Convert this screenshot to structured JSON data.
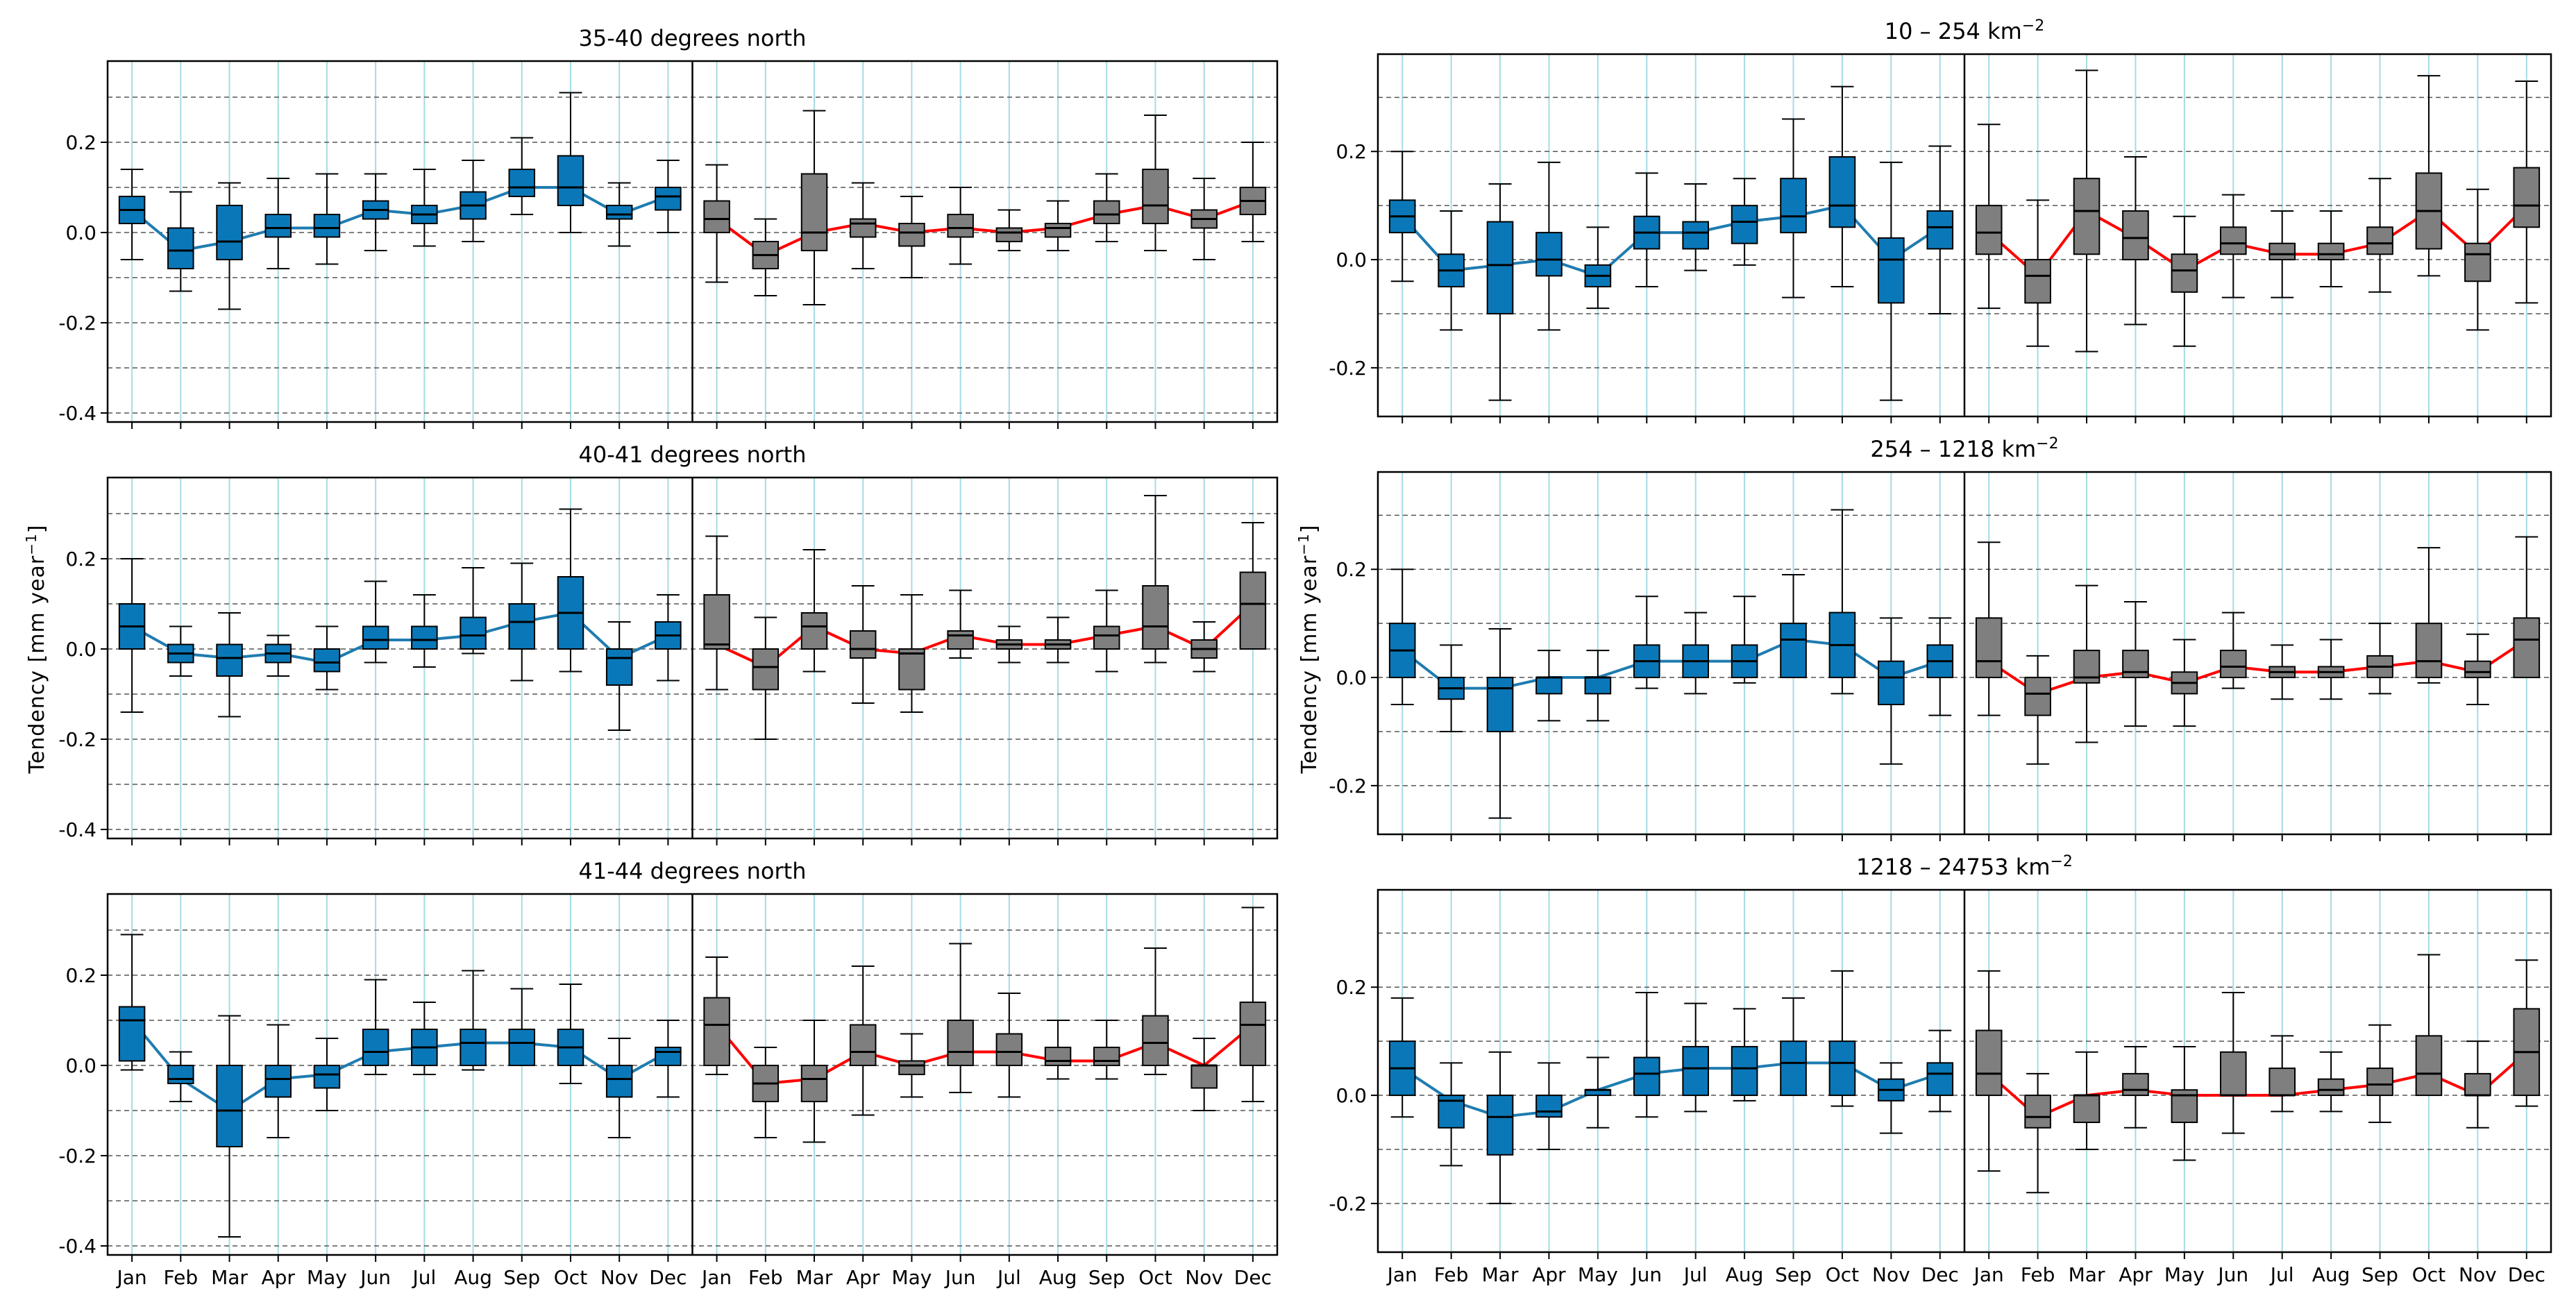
{
  "figure": {
    "ylabel_left": "Tendency [mm year",
    "ylabel_right": "Tendency [mm year",
    "ylabel_sup": "−1",
    "ylabel_close": "]",
    "months": [
      "Jan",
      "Feb",
      "Mar",
      "Apr",
      "May",
      "Jun",
      "Jul",
      "Aug",
      "Sep",
      "Oct",
      "Nov",
      "Dec"
    ],
    "colors": {
      "blue_box": "#0a78b8",
      "blue_line": "#1f7cb0",
      "gray_box": "#7f7f7f",
      "red_line": "#ff0000",
      "grid_v": "#a6dbe3",
      "grid_h": "#555555"
    }
  },
  "chart_data": [
    {
      "id": "p0",
      "type": "box",
      "title": "35-40 degrees north",
      "title_sup": "",
      "ylim": [
        -0.42,
        0.38
      ],
      "yticks": [
        -0.4,
        -0.2,
        0.0,
        0.2
      ],
      "left": {
        "median": [
          0.05,
          -0.04,
          -0.02,
          0.01,
          0.01,
          0.05,
          0.04,
          0.06,
          0.1,
          0.1,
          0.04,
          0.08
        ],
        "q1": [
          0.02,
          -0.08,
          -0.06,
          -0.01,
          -0.01,
          0.03,
          0.02,
          0.03,
          0.08,
          0.06,
          0.03,
          0.05
        ],
        "q3": [
          0.08,
          0.01,
          0.06,
          0.04,
          0.04,
          0.07,
          0.06,
          0.09,
          0.14,
          0.17,
          0.06,
          0.1
        ],
        "lo": [
          -0.06,
          -0.13,
          -0.17,
          -0.08,
          -0.07,
          -0.04,
          -0.03,
          -0.02,
          0.04,
          0.0,
          -0.03,
          0.0
        ],
        "hi": [
          0.14,
          0.09,
          0.11,
          0.12,
          0.13,
          0.13,
          0.14,
          0.16,
          0.21,
          0.31,
          0.11,
          0.16
        ]
      },
      "right": {
        "median": [
          0.03,
          -0.05,
          0.0,
          0.02,
          0.0,
          0.01,
          0.0,
          0.01,
          0.04,
          0.06,
          0.03,
          0.07
        ],
        "q1": [
          0.0,
          -0.08,
          -0.04,
          -0.01,
          -0.03,
          -0.01,
          -0.02,
          -0.01,
          0.02,
          0.02,
          0.01,
          0.04
        ],
        "q3": [
          0.07,
          -0.02,
          0.13,
          0.03,
          0.02,
          0.04,
          0.01,
          0.02,
          0.07,
          0.14,
          0.05,
          0.1
        ],
        "lo": [
          -0.11,
          -0.14,
          -0.16,
          -0.08,
          -0.1,
          -0.07,
          -0.04,
          -0.04,
          -0.02,
          -0.04,
          -0.06,
          -0.02
        ],
        "hi": [
          0.15,
          0.03,
          0.27,
          0.11,
          0.08,
          0.1,
          0.05,
          0.07,
          0.13,
          0.26,
          0.12,
          0.2
        ]
      }
    },
    {
      "id": "p1",
      "type": "box",
      "title": "40-41 degrees north",
      "title_sup": "",
      "ylim": [
        -0.42,
        0.38
      ],
      "yticks": [
        -0.4,
        -0.2,
        0.0,
        0.2
      ],
      "left": {
        "median": [
          0.05,
          -0.01,
          -0.02,
          -0.01,
          -0.03,
          0.02,
          0.02,
          0.03,
          0.06,
          0.08,
          -0.02,
          0.03
        ],
        "q1": [
          0.0,
          -0.03,
          -0.06,
          -0.03,
          -0.05,
          0.0,
          0.0,
          0.0,
          0.0,
          0.0,
          -0.08,
          0.0
        ],
        "q3": [
          0.1,
          0.01,
          0.01,
          0.01,
          0.0,
          0.05,
          0.05,
          0.07,
          0.1,
          0.16,
          0.0,
          0.06
        ],
        "lo": [
          -0.14,
          -0.06,
          -0.15,
          -0.06,
          -0.09,
          -0.03,
          -0.04,
          -0.01,
          -0.07,
          -0.05,
          -0.18,
          -0.07
        ],
        "hi": [
          0.2,
          0.05,
          0.08,
          0.03,
          0.05,
          0.15,
          0.12,
          0.18,
          0.19,
          0.31,
          0.06,
          0.12
        ]
      },
      "right": {
        "median": [
          0.01,
          -0.04,
          0.05,
          0.0,
          -0.01,
          0.03,
          0.01,
          0.01,
          0.03,
          0.05,
          0.0,
          0.1
        ],
        "q1": [
          0.0,
          -0.09,
          0.0,
          -0.02,
          -0.09,
          0.0,
          0.0,
          0.0,
          0.0,
          0.0,
          -0.02,
          0.0
        ],
        "q3": [
          0.12,
          0.0,
          0.08,
          0.04,
          0.0,
          0.04,
          0.02,
          0.02,
          0.05,
          0.14,
          0.02,
          0.17
        ],
        "lo": [
          -0.09,
          -0.2,
          -0.05,
          -0.12,
          -0.14,
          -0.02,
          -0.03,
          -0.03,
          -0.05,
          -0.03,
          -0.05,
          0.0
        ],
        "hi": [
          0.25,
          0.07,
          0.22,
          0.14,
          0.12,
          0.13,
          0.05,
          0.07,
          0.13,
          0.34,
          0.06,
          0.28
        ]
      }
    },
    {
      "id": "p2",
      "type": "box",
      "title": "41-44 degrees north",
      "title_sup": "",
      "ylim": [
        -0.42,
        0.38
      ],
      "yticks": [
        -0.4,
        -0.2,
        0.0,
        0.2
      ],
      "left": {
        "median": [
          0.1,
          -0.03,
          -0.1,
          -0.03,
          -0.02,
          0.03,
          0.04,
          0.05,
          0.05,
          0.04,
          -0.03,
          0.03
        ],
        "q1": [
          0.01,
          -0.04,
          -0.18,
          -0.07,
          -0.05,
          0.0,
          0.0,
          0.0,
          0.0,
          0.0,
          -0.07,
          0.0
        ],
        "q3": [
          0.13,
          0.0,
          0.0,
          0.0,
          0.0,
          0.08,
          0.08,
          0.08,
          0.08,
          0.08,
          0.0,
          0.04
        ],
        "lo": [
          -0.01,
          -0.08,
          -0.38,
          -0.16,
          -0.1,
          -0.02,
          -0.02,
          -0.01,
          0.0,
          -0.04,
          -0.16,
          -0.07
        ],
        "hi": [
          0.29,
          0.03,
          0.11,
          0.09,
          0.06,
          0.19,
          0.14,
          0.21,
          0.17,
          0.18,
          0.06,
          0.1
        ]
      },
      "right": {
        "median": [
          0.09,
          -0.04,
          -0.03,
          0.03,
          0.0,
          0.03,
          0.03,
          0.01,
          0.01,
          0.05,
          0.0,
          0.09
        ],
        "q1": [
          0.0,
          -0.08,
          -0.08,
          0.0,
          -0.02,
          0.0,
          0.0,
          0.0,
          0.0,
          0.0,
          -0.05,
          0.0
        ],
        "q3": [
          0.15,
          0.0,
          0.0,
          0.09,
          0.01,
          0.1,
          0.07,
          0.04,
          0.04,
          0.11,
          0.0,
          0.14
        ],
        "lo": [
          -0.02,
          -0.16,
          -0.17,
          -0.11,
          -0.07,
          -0.06,
          -0.07,
          -0.03,
          -0.03,
          -0.02,
          -0.1,
          -0.08
        ],
        "hi": [
          0.24,
          0.04,
          0.1,
          0.22,
          0.07,
          0.27,
          0.16,
          0.1,
          0.1,
          0.26,
          0.06,
          0.35
        ]
      }
    },
    {
      "id": "p3",
      "type": "box",
      "title": "10 – 254 km",
      "title_sup": "−2",
      "ylim": [
        -0.29,
        0.38
      ],
      "yticks": [
        -0.2,
        0.0,
        0.2
      ],
      "left": {
        "median": [
          0.08,
          -0.02,
          -0.01,
          0.0,
          -0.03,
          0.05,
          0.05,
          0.07,
          0.08,
          0.1,
          0.0,
          0.06
        ],
        "q1": [
          0.05,
          -0.05,
          -0.1,
          -0.03,
          -0.05,
          0.02,
          0.02,
          0.03,
          0.05,
          0.06,
          -0.08,
          0.02
        ],
        "q3": [
          0.11,
          0.01,
          0.07,
          0.05,
          -0.01,
          0.08,
          0.07,
          0.1,
          0.15,
          0.19,
          0.04,
          0.09
        ],
        "lo": [
          -0.04,
          -0.13,
          -0.26,
          -0.13,
          -0.09,
          -0.05,
          -0.02,
          -0.01,
          -0.07,
          -0.05,
          -0.26,
          -0.1
        ],
        "hi": [
          0.2,
          0.09,
          0.14,
          0.18,
          0.06,
          0.16,
          0.14,
          0.15,
          0.26,
          0.32,
          0.18,
          0.21
        ]
      },
      "right": {
        "median": [
          0.05,
          -0.03,
          0.09,
          0.04,
          -0.02,
          0.03,
          0.01,
          0.01,
          0.03,
          0.09,
          0.01,
          0.1
        ],
        "q1": [
          0.01,
          -0.08,
          0.01,
          0.0,
          -0.06,
          0.01,
          0.0,
          0.0,
          0.01,
          0.02,
          -0.04,
          0.06
        ],
        "q3": [
          0.1,
          0.0,
          0.15,
          0.09,
          0.01,
          0.06,
          0.03,
          0.03,
          0.06,
          0.16,
          0.03,
          0.17
        ],
        "lo": [
          -0.09,
          -0.16,
          -0.17,
          -0.12,
          -0.16,
          -0.07,
          -0.07,
          -0.05,
          -0.06,
          -0.03,
          -0.13,
          -0.08
        ],
        "hi": [
          0.25,
          0.11,
          0.35,
          0.19,
          0.08,
          0.12,
          0.09,
          0.09,
          0.15,
          0.34,
          0.13,
          0.33
        ]
      }
    },
    {
      "id": "p4",
      "type": "box",
      "title": "254 – 1218 km",
      "title_sup": "−2",
      "ylim": [
        -0.29,
        0.38
      ],
      "yticks": [
        -0.2,
        0.0,
        0.2
      ],
      "left": {
        "median": [
          0.05,
          -0.02,
          -0.02,
          0.0,
          0.0,
          0.03,
          0.03,
          0.03,
          0.07,
          0.06,
          0.0,
          0.03
        ],
        "q1": [
          0.0,
          -0.04,
          -0.1,
          -0.03,
          -0.03,
          0.0,
          0.0,
          0.0,
          0.0,
          0.0,
          -0.05,
          0.0
        ],
        "q3": [
          0.1,
          0.0,
          0.0,
          0.0,
          0.0,
          0.06,
          0.06,
          0.06,
          0.1,
          0.12,
          0.03,
          0.06
        ],
        "lo": [
          -0.05,
          -0.1,
          -0.26,
          -0.08,
          -0.08,
          -0.02,
          -0.03,
          -0.01,
          0.0,
          -0.03,
          -0.16,
          -0.07
        ],
        "hi": [
          0.2,
          0.06,
          0.09,
          0.05,
          0.05,
          0.15,
          0.12,
          0.15,
          0.19,
          0.31,
          0.11,
          0.11
        ]
      },
      "right": {
        "median": [
          0.03,
          -0.03,
          0.0,
          0.01,
          -0.01,
          0.02,
          0.01,
          0.01,
          0.02,
          0.03,
          0.01,
          0.07
        ],
        "q1": [
          0.0,
          -0.07,
          -0.01,
          0.0,
          -0.03,
          0.0,
          0.0,
          0.0,
          0.0,
          0.0,
          0.0,
          0.0
        ],
        "q3": [
          0.11,
          0.0,
          0.05,
          0.05,
          0.01,
          0.05,
          0.02,
          0.02,
          0.04,
          0.1,
          0.03,
          0.11
        ],
        "lo": [
          -0.07,
          -0.16,
          -0.12,
          -0.09,
          -0.09,
          -0.02,
          -0.04,
          -0.04,
          -0.03,
          -0.01,
          -0.05,
          0.0
        ],
        "hi": [
          0.25,
          0.04,
          0.17,
          0.14,
          0.07,
          0.12,
          0.06,
          0.07,
          0.1,
          0.24,
          0.08,
          0.26
        ]
      }
    },
    {
      "id": "p5",
      "type": "box",
      "title": "1218 – 24753 km",
      "title_sup": "−2",
      "ylim": [
        -0.29,
        0.38
      ],
      "yticks": [
        -0.2,
        0.0,
        0.2
      ],
      "left": {
        "median": [
          0.05,
          -0.01,
          -0.04,
          -0.03,
          0.01,
          0.04,
          0.05,
          0.05,
          0.06,
          0.06,
          0.01,
          0.04
        ],
        "q1": [
          0.0,
          -0.06,
          -0.11,
          -0.04,
          0.0,
          0.0,
          0.0,
          0.0,
          0.0,
          0.0,
          -0.01,
          0.0
        ],
        "q3": [
          0.1,
          0.0,
          0.0,
          0.0,
          0.01,
          0.07,
          0.09,
          0.09,
          0.1,
          0.1,
          0.03,
          0.06
        ],
        "lo": [
          -0.04,
          -0.13,
          -0.2,
          -0.1,
          -0.06,
          -0.04,
          -0.03,
          -0.01,
          0.0,
          -0.02,
          -0.07,
          -0.03
        ],
        "hi": [
          0.18,
          0.06,
          0.08,
          0.06,
          0.07,
          0.19,
          0.17,
          0.16,
          0.18,
          0.23,
          0.06,
          0.12
        ]
      },
      "right": {
        "median": [
          0.04,
          -0.04,
          0.0,
          0.01,
          0.0,
          0.0,
          0.0,
          0.01,
          0.02,
          0.04,
          0.0,
          0.08
        ],
        "q1": [
          0.0,
          -0.06,
          -0.05,
          0.0,
          -0.05,
          0.0,
          0.0,
          0.0,
          0.0,
          0.0,
          0.0,
          0.0
        ],
        "q3": [
          0.12,
          0.0,
          0.0,
          0.04,
          0.01,
          0.08,
          0.05,
          0.03,
          0.05,
          0.11,
          0.04,
          0.16
        ],
        "lo": [
          -0.14,
          -0.18,
          -0.1,
          -0.06,
          -0.12,
          -0.07,
          -0.03,
          -0.03,
          -0.05,
          0.0,
          -0.06,
          -0.02
        ],
        "hi": [
          0.23,
          0.04,
          0.08,
          0.09,
          0.09,
          0.19,
          0.11,
          0.08,
          0.13,
          0.26,
          0.1,
          0.25
        ]
      }
    }
  ]
}
